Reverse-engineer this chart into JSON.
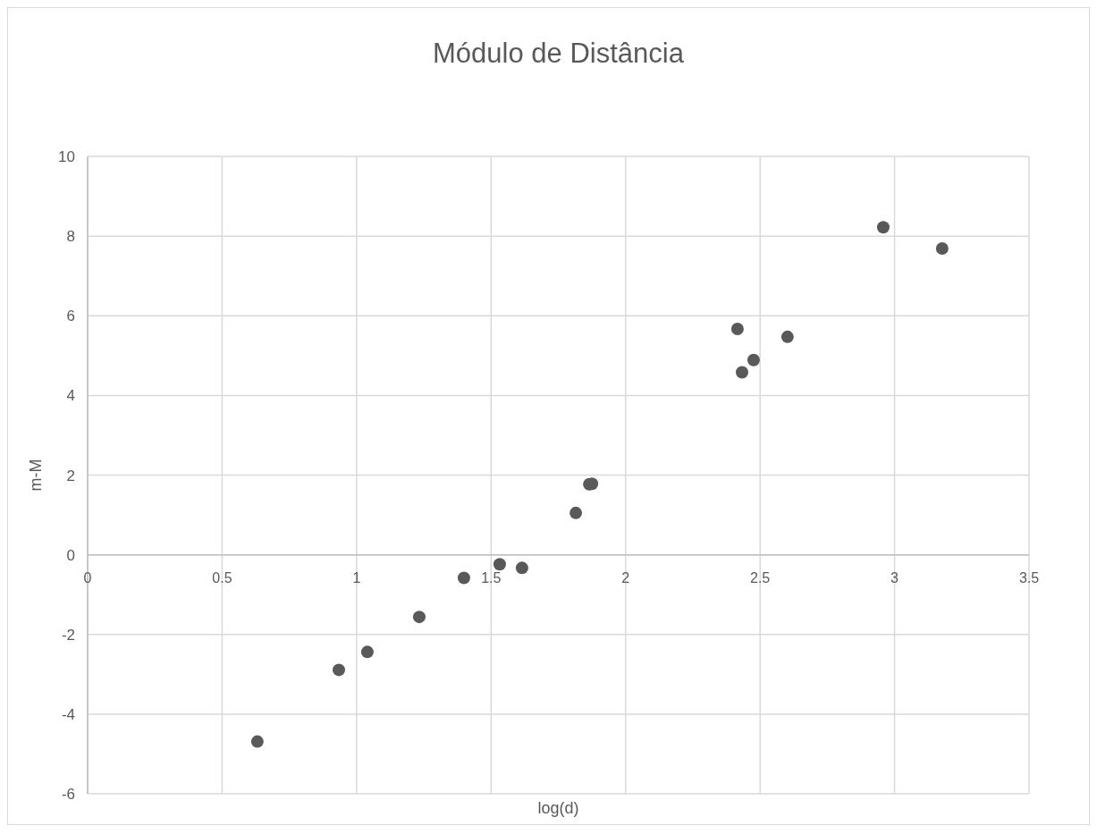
{
  "chart_data": {
    "type": "scatter",
    "title": "Módulo de Distância",
    "xlabel": "log(d)",
    "ylabel": "m-M",
    "x": [
      0.631,
      0.934,
      1.04,
      1.233,
      1.399,
      1.532,
      1.615,
      1.815,
      1.865,
      1.875,
      2.416,
      2.433,
      2.476,
      2.602,
      2.958,
      3.177
    ],
    "values": [
      -4.69,
      -2.89,
      -2.44,
      -1.56,
      -0.58,
      -0.24,
      -0.33,
      1.05,
      1.77,
      1.78,
      5.67,
      4.58,
      4.89,
      5.47,
      8.22,
      7.69
    ],
    "color": "#595959",
    "marker": "circle",
    "xlim": [
      0,
      3.5
    ],
    "xticks": [
      0,
      0.5,
      1,
      1.5,
      2,
      2.5,
      3,
      3.5
    ],
    "ylim": [
      -6,
      10
    ],
    "yticks": [
      -6,
      -4,
      -2,
      0,
      2,
      4,
      6,
      8,
      10
    ],
    "grid": true
  }
}
